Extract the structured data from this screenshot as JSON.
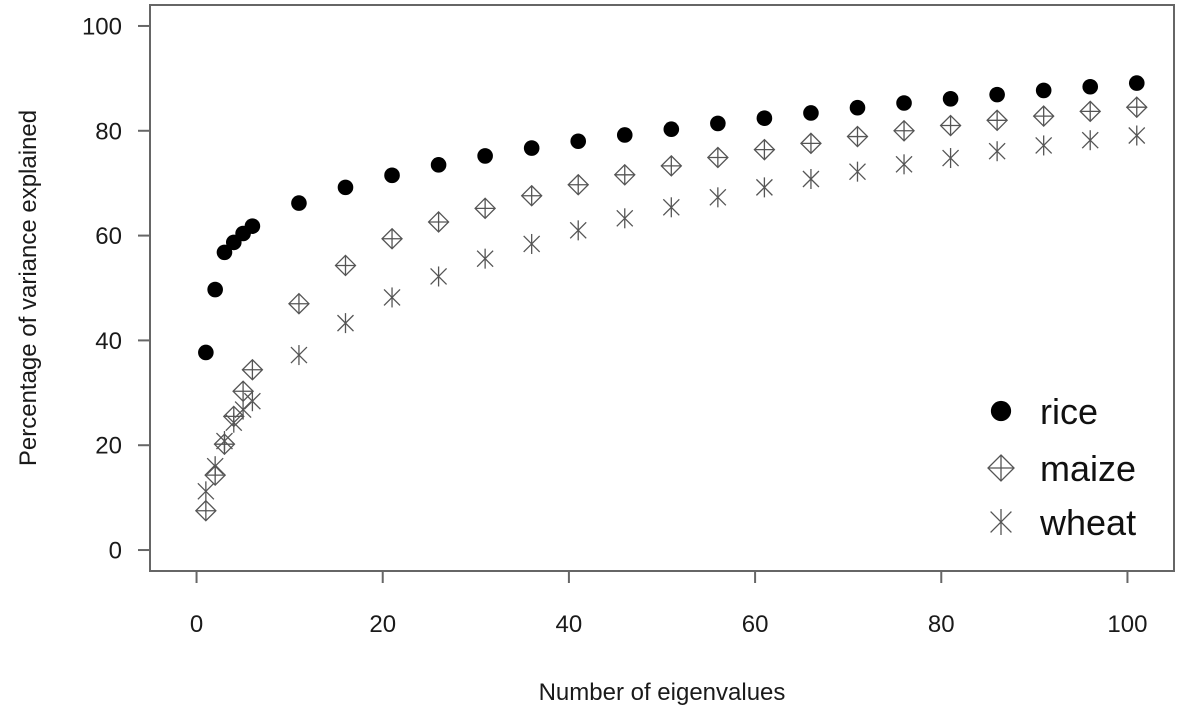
{
  "chart_data": {
    "type": "scatter",
    "xlabel": "Number of eigenvalues",
    "ylabel": "Percentage of variance explained",
    "xlim": [
      -5,
      105
    ],
    "ylim": [
      -4,
      104
    ],
    "xticks": [
      0,
      20,
      40,
      60,
      80,
      100
    ],
    "yticks": [
      0,
      20,
      40,
      60,
      80,
      100
    ],
    "grid": false,
    "legend_position": "bottom-right",
    "series": [
      {
        "name": "rice",
        "marker": "filled-circle",
        "color": "#000000",
        "points": [
          [
            1,
            37.7
          ],
          [
            2,
            49.7
          ],
          [
            3,
            56.8
          ],
          [
            4,
            58.7
          ],
          [
            5,
            60.4
          ],
          [
            6,
            61.8
          ],
          [
            11,
            66.2
          ],
          [
            16,
            69.2
          ],
          [
            21,
            71.5
          ],
          [
            26,
            73.5
          ],
          [
            31,
            75.2
          ],
          [
            36,
            76.7
          ],
          [
            41,
            78.0
          ],
          [
            46,
            79.2
          ],
          [
            51,
            80.3
          ],
          [
            56,
            81.4
          ],
          [
            61,
            82.4
          ],
          [
            66,
            83.4
          ],
          [
            71,
            84.4
          ],
          [
            76,
            85.3
          ],
          [
            81,
            86.1
          ],
          [
            86,
            86.9
          ],
          [
            91,
            87.7
          ],
          [
            96,
            88.4
          ],
          [
            101,
            89.1
          ]
        ]
      },
      {
        "name": "maize",
        "marker": "crossed-diamond",
        "color": "#555555",
        "points": [
          [
            1,
            7.5
          ],
          [
            2,
            14.3
          ],
          [
            3,
            20.2
          ],
          [
            4,
            25.5
          ],
          [
            5,
            30.3
          ],
          [
            6,
            34.4
          ],
          [
            11,
            47.0
          ],
          [
            16,
            54.3
          ],
          [
            21,
            59.4
          ],
          [
            26,
            62.6
          ],
          [
            31,
            65.2
          ],
          [
            36,
            67.6
          ],
          [
            41,
            69.7
          ],
          [
            46,
            71.6
          ],
          [
            51,
            73.3
          ],
          [
            56,
            74.9
          ],
          [
            61,
            76.4
          ],
          [
            66,
            77.6
          ],
          [
            71,
            78.9
          ],
          [
            76,
            80.0
          ],
          [
            81,
            81.0
          ],
          [
            86,
            82.0
          ],
          [
            91,
            82.8
          ],
          [
            96,
            83.7
          ],
          [
            101,
            84.5
          ]
        ]
      },
      {
        "name": "wheat",
        "marker": "asterisk",
        "color": "#555555",
        "points": [
          [
            1,
            11.2
          ],
          [
            2,
            16.0
          ],
          [
            3,
            20.8
          ],
          [
            4,
            24.3
          ],
          [
            5,
            26.8
          ],
          [
            6,
            28.4
          ],
          [
            11,
            37.2
          ],
          [
            16,
            43.3
          ],
          [
            21,
            48.2
          ],
          [
            26,
            52.2
          ],
          [
            31,
            55.6
          ],
          [
            36,
            58.4
          ],
          [
            41,
            61.0
          ],
          [
            46,
            63.3
          ],
          [
            51,
            65.4
          ],
          [
            56,
            67.3
          ],
          [
            61,
            69.2
          ],
          [
            66,
            70.8
          ],
          [
            71,
            72.2
          ],
          [
            76,
            73.6
          ],
          [
            81,
            74.8
          ],
          [
            86,
            76.1
          ],
          [
            91,
            77.2
          ],
          [
            96,
            78.2
          ],
          [
            101,
            79.1
          ]
        ]
      }
    ]
  }
}
